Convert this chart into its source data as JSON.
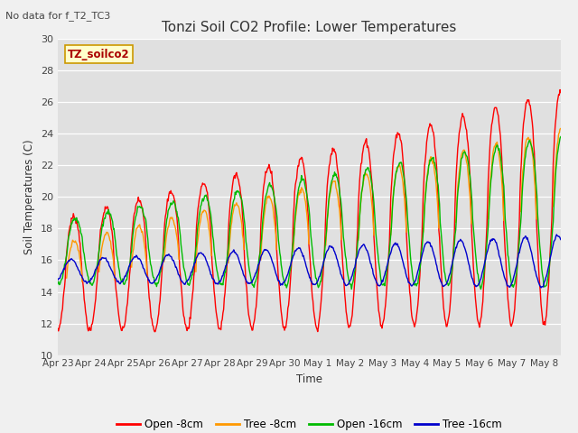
{
  "title": "Tonzi Soil CO2 Profile: Lower Temperatures",
  "subtitle": "No data for f_T2_TC3",
  "ylabel": "Soil Temperatures (C)",
  "xlabel": "Time",
  "ylim": [
    10,
    30
  ],
  "xlim": [
    0,
    15.5
  ],
  "tick_labels": [
    "Apr 23",
    "Apr 24",
    "Apr 25",
    "Apr 26",
    "Apr 27",
    "Apr 28",
    "Apr 29",
    "Apr 30",
    "May 1",
    "May 2",
    "May 3",
    "May 4",
    "May 5",
    "May 6",
    "May 7",
    "May 8"
  ],
  "legend_labels": [
    "Open -8cm",
    "Tree -8cm",
    "Open -16cm",
    "Tree -16cm"
  ],
  "legend_colors": [
    "#ff0000",
    "#ff9900",
    "#00bb00",
    "#0000cc"
  ],
  "watermark_text": "TZ_soilco2",
  "plot_bg_color": "#e0e0e0",
  "fig_bg_color": "#f0f0f0",
  "line_width": 1.0,
  "yticks": [
    10,
    12,
    14,
    16,
    18,
    20,
    22,
    24,
    26,
    28,
    30
  ]
}
